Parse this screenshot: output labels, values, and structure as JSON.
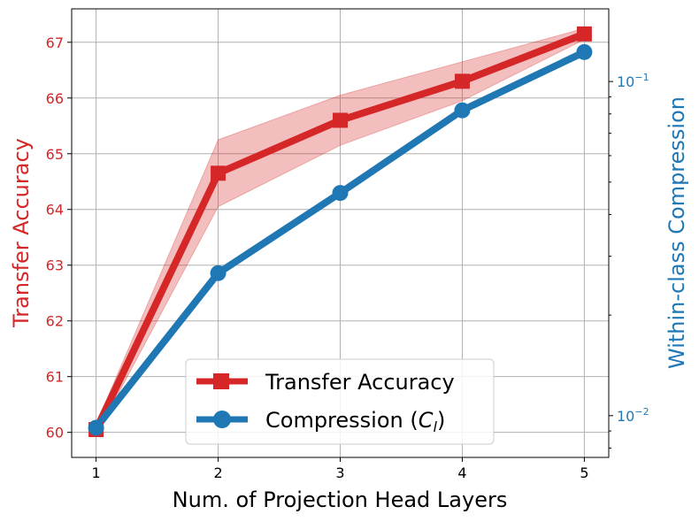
{
  "chart_data": {
    "type": "line",
    "xlabel": "Num. of Projection Head Layers",
    "ylabel_left": "Transfer Accuracy",
    "ylabel_right": "Within-class Compression",
    "x": [
      1,
      2,
      3,
      4,
      5
    ],
    "x_ticks": [
      "1",
      "2",
      "3",
      "4",
      "5"
    ],
    "xlim": [
      0.8,
      5.2
    ],
    "ylim_left": [
      59.55,
      67.6
    ],
    "y_ticks_left": [
      "60",
      "61",
      "62",
      "63",
      "64",
      "65",
      "66",
      "67"
    ],
    "yscale_right": "log",
    "ylim_right": [
      0.0075,
      0.165
    ],
    "y_ticks_right": [
      {
        "value": 0.01,
        "base": "10",
        "exp": "−2"
      },
      {
        "value": 0.1,
        "base": "10",
        "exp": "−1"
      }
    ],
    "grid": true,
    "legend": {
      "placement": "bottom-center",
      "entries": [
        {
          "label": "Transfer Accuracy",
          "marker": "square",
          "color": "#d62728"
        },
        {
          "label_prefix": "Compression (",
          "label_var": "C",
          "label_sub": "l",
          "label_suffix": ")",
          "marker": "circle",
          "color": "#1f77b4"
        }
      ]
    },
    "series": [
      {
        "name": "Transfer Accuracy",
        "axis": "left",
        "color": "#d62728",
        "marker": "square",
        "values": [
          60.05,
          64.65,
          65.6,
          66.3,
          67.15
        ],
        "band_lower": [
          59.95,
          64.05,
          65.15,
          65.95,
          67.05
        ],
        "band_upper": [
          60.15,
          65.25,
          66.05,
          66.65,
          67.25
        ]
      },
      {
        "name": "Compression (C_l)",
        "axis": "right",
        "color": "#1f77b4",
        "marker": "circle",
        "values": [
          0.0092,
          0.0267,
          0.0464,
          0.082,
          0.1225
        ]
      }
    ]
  }
}
